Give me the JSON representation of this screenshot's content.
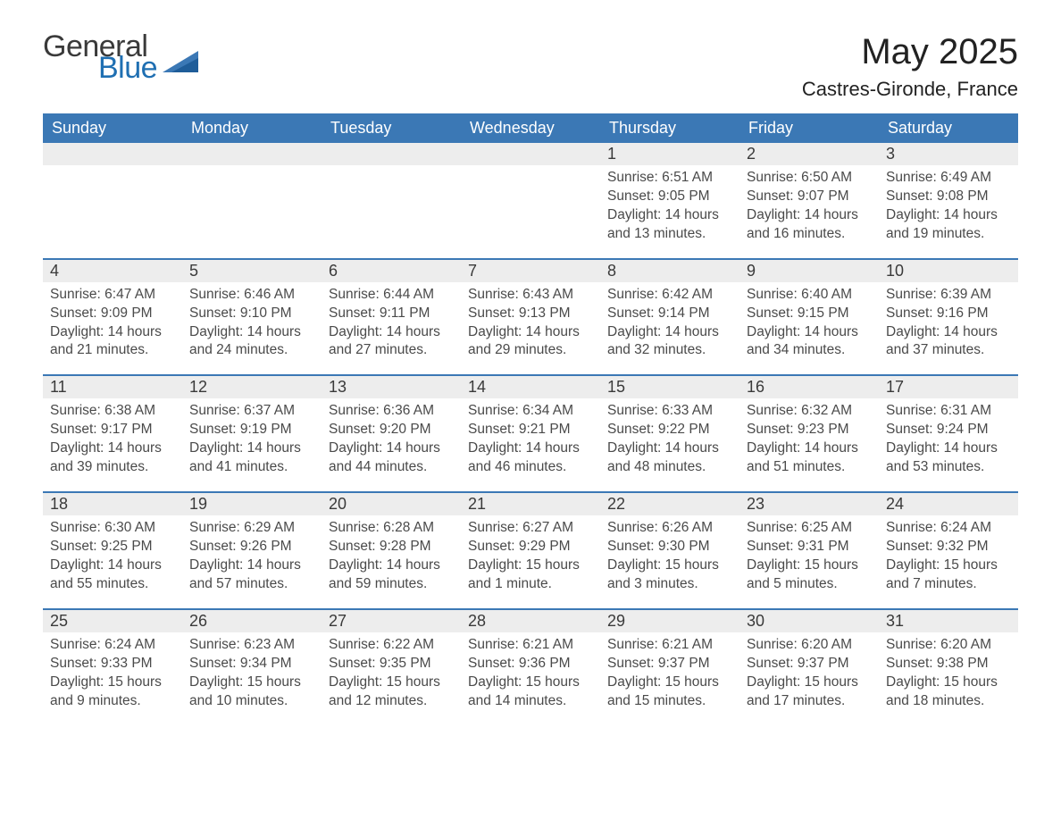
{
  "brand": {
    "word1": "General",
    "word2": "Blue"
  },
  "title": "May 2025",
  "subtitle": "Castres-Gironde, France",
  "colors": {
    "header_blue": "#3b78b5",
    "accent_blue": "#1f6fb2",
    "row_grey": "#ededed",
    "text_dark": "#2b2b2b",
    "text_grey": "#4a4a4a",
    "white": "#ffffff"
  },
  "weekdays": [
    "Sunday",
    "Monday",
    "Tuesday",
    "Wednesday",
    "Thursday",
    "Friday",
    "Saturday"
  ],
  "weeks": [
    [
      {
        "day": "",
        "sunrise": "",
        "sunset": "",
        "daylight1": "",
        "daylight2": ""
      },
      {
        "day": "",
        "sunrise": "",
        "sunset": "",
        "daylight1": "",
        "daylight2": ""
      },
      {
        "day": "",
        "sunrise": "",
        "sunset": "",
        "daylight1": "",
        "daylight2": ""
      },
      {
        "day": "",
        "sunrise": "",
        "sunset": "",
        "daylight1": "",
        "daylight2": ""
      },
      {
        "day": "1",
        "sunrise": "Sunrise: 6:51 AM",
        "sunset": "Sunset: 9:05 PM",
        "daylight1": "Daylight: 14 hours",
        "daylight2": "and 13 minutes."
      },
      {
        "day": "2",
        "sunrise": "Sunrise: 6:50 AM",
        "sunset": "Sunset: 9:07 PM",
        "daylight1": "Daylight: 14 hours",
        "daylight2": "and 16 minutes."
      },
      {
        "day": "3",
        "sunrise": "Sunrise: 6:49 AM",
        "sunset": "Sunset: 9:08 PM",
        "daylight1": "Daylight: 14 hours",
        "daylight2": "and 19 minutes."
      }
    ],
    [
      {
        "day": "4",
        "sunrise": "Sunrise: 6:47 AM",
        "sunset": "Sunset: 9:09 PM",
        "daylight1": "Daylight: 14 hours",
        "daylight2": "and 21 minutes."
      },
      {
        "day": "5",
        "sunrise": "Sunrise: 6:46 AM",
        "sunset": "Sunset: 9:10 PM",
        "daylight1": "Daylight: 14 hours",
        "daylight2": "and 24 minutes."
      },
      {
        "day": "6",
        "sunrise": "Sunrise: 6:44 AM",
        "sunset": "Sunset: 9:11 PM",
        "daylight1": "Daylight: 14 hours",
        "daylight2": "and 27 minutes."
      },
      {
        "day": "7",
        "sunrise": "Sunrise: 6:43 AM",
        "sunset": "Sunset: 9:13 PM",
        "daylight1": "Daylight: 14 hours",
        "daylight2": "and 29 minutes."
      },
      {
        "day": "8",
        "sunrise": "Sunrise: 6:42 AM",
        "sunset": "Sunset: 9:14 PM",
        "daylight1": "Daylight: 14 hours",
        "daylight2": "and 32 minutes."
      },
      {
        "day": "9",
        "sunrise": "Sunrise: 6:40 AM",
        "sunset": "Sunset: 9:15 PM",
        "daylight1": "Daylight: 14 hours",
        "daylight2": "and 34 minutes."
      },
      {
        "day": "10",
        "sunrise": "Sunrise: 6:39 AM",
        "sunset": "Sunset: 9:16 PM",
        "daylight1": "Daylight: 14 hours",
        "daylight2": "and 37 minutes."
      }
    ],
    [
      {
        "day": "11",
        "sunrise": "Sunrise: 6:38 AM",
        "sunset": "Sunset: 9:17 PM",
        "daylight1": "Daylight: 14 hours",
        "daylight2": "and 39 minutes."
      },
      {
        "day": "12",
        "sunrise": "Sunrise: 6:37 AM",
        "sunset": "Sunset: 9:19 PM",
        "daylight1": "Daylight: 14 hours",
        "daylight2": "and 41 minutes."
      },
      {
        "day": "13",
        "sunrise": "Sunrise: 6:36 AM",
        "sunset": "Sunset: 9:20 PM",
        "daylight1": "Daylight: 14 hours",
        "daylight2": "and 44 minutes."
      },
      {
        "day": "14",
        "sunrise": "Sunrise: 6:34 AM",
        "sunset": "Sunset: 9:21 PM",
        "daylight1": "Daylight: 14 hours",
        "daylight2": "and 46 minutes."
      },
      {
        "day": "15",
        "sunrise": "Sunrise: 6:33 AM",
        "sunset": "Sunset: 9:22 PM",
        "daylight1": "Daylight: 14 hours",
        "daylight2": "and 48 minutes."
      },
      {
        "day": "16",
        "sunrise": "Sunrise: 6:32 AM",
        "sunset": "Sunset: 9:23 PM",
        "daylight1": "Daylight: 14 hours",
        "daylight2": "and 51 minutes."
      },
      {
        "day": "17",
        "sunrise": "Sunrise: 6:31 AM",
        "sunset": "Sunset: 9:24 PM",
        "daylight1": "Daylight: 14 hours",
        "daylight2": "and 53 minutes."
      }
    ],
    [
      {
        "day": "18",
        "sunrise": "Sunrise: 6:30 AM",
        "sunset": "Sunset: 9:25 PM",
        "daylight1": "Daylight: 14 hours",
        "daylight2": "and 55 minutes."
      },
      {
        "day": "19",
        "sunrise": "Sunrise: 6:29 AM",
        "sunset": "Sunset: 9:26 PM",
        "daylight1": "Daylight: 14 hours",
        "daylight2": "and 57 minutes."
      },
      {
        "day": "20",
        "sunrise": "Sunrise: 6:28 AM",
        "sunset": "Sunset: 9:28 PM",
        "daylight1": "Daylight: 14 hours",
        "daylight2": "and 59 minutes."
      },
      {
        "day": "21",
        "sunrise": "Sunrise: 6:27 AM",
        "sunset": "Sunset: 9:29 PM",
        "daylight1": "Daylight: 15 hours",
        "daylight2": "and 1 minute."
      },
      {
        "day": "22",
        "sunrise": "Sunrise: 6:26 AM",
        "sunset": "Sunset: 9:30 PM",
        "daylight1": "Daylight: 15 hours",
        "daylight2": "and 3 minutes."
      },
      {
        "day": "23",
        "sunrise": "Sunrise: 6:25 AM",
        "sunset": "Sunset: 9:31 PM",
        "daylight1": "Daylight: 15 hours",
        "daylight2": "and 5 minutes."
      },
      {
        "day": "24",
        "sunrise": "Sunrise: 6:24 AM",
        "sunset": "Sunset: 9:32 PM",
        "daylight1": "Daylight: 15 hours",
        "daylight2": "and 7 minutes."
      }
    ],
    [
      {
        "day": "25",
        "sunrise": "Sunrise: 6:24 AM",
        "sunset": "Sunset: 9:33 PM",
        "daylight1": "Daylight: 15 hours",
        "daylight2": "and 9 minutes."
      },
      {
        "day": "26",
        "sunrise": "Sunrise: 6:23 AM",
        "sunset": "Sunset: 9:34 PM",
        "daylight1": "Daylight: 15 hours",
        "daylight2": "and 10 minutes."
      },
      {
        "day": "27",
        "sunrise": "Sunrise: 6:22 AM",
        "sunset": "Sunset: 9:35 PM",
        "daylight1": "Daylight: 15 hours",
        "daylight2": "and 12 minutes."
      },
      {
        "day": "28",
        "sunrise": "Sunrise: 6:21 AM",
        "sunset": "Sunset: 9:36 PM",
        "daylight1": "Daylight: 15 hours",
        "daylight2": "and 14 minutes."
      },
      {
        "day": "29",
        "sunrise": "Sunrise: 6:21 AM",
        "sunset": "Sunset: 9:37 PM",
        "daylight1": "Daylight: 15 hours",
        "daylight2": "and 15 minutes."
      },
      {
        "day": "30",
        "sunrise": "Sunrise: 6:20 AM",
        "sunset": "Sunset: 9:37 PM",
        "daylight1": "Daylight: 15 hours",
        "daylight2": "and 17 minutes."
      },
      {
        "day": "31",
        "sunrise": "Sunrise: 6:20 AM",
        "sunset": "Sunset: 9:38 PM",
        "daylight1": "Daylight: 15 hours",
        "daylight2": "and 18 minutes."
      }
    ]
  ]
}
